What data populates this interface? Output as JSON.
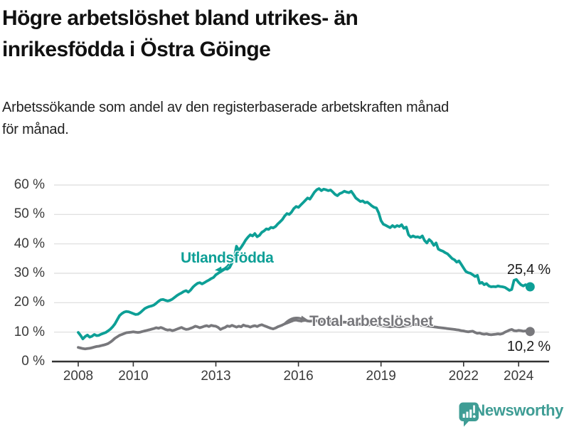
{
  "header": {
    "title_lines": [
      "Högre arbetslöshet bland utrikes- än",
      "inrikesfödda i Östra Göinge"
    ],
    "subtitle_lines": [
      "Arbetssökande som andel av den registerbaserade arbetskraften månad",
      "för månad."
    ]
  },
  "chart_data": {
    "type": "line",
    "title": "Högre arbetslöshet bland utrikes- än inrikesfödda i Östra Göinge",
    "subtitle": "Arbetssökande som andel av den registerbaserade arbetskraften månad för månad.",
    "xlabel": "",
    "ylabel": "",
    "grid": "horizontal",
    "x_axis": {
      "ticks": [
        2008,
        2010,
        2013,
        2016,
        2019,
        2022,
        2024
      ]
    },
    "y_axis": {
      "ticks": [
        0,
        10,
        20,
        30,
        40,
        50,
        60
      ],
      "tick_suffix": " %",
      "ylim": [
        0,
        62
      ]
    },
    "series": [
      {
        "name": "Utlandsfödda",
        "color": "#0d9f96",
        "end_label": "25,4 %",
        "end_value": 25.4,
        "start_year": 2008,
        "interval_months": 1,
        "values": [
          9.9,
          8.9,
          7.7,
          8.5,
          9.0,
          8.3,
          8.6,
          9.2,
          8.8,
          8.9,
          9.3,
          9.6,
          9.9,
          10.4,
          11.0,
          11.8,
          12.8,
          14.2,
          15.6,
          16.3,
          16.8,
          17.0,
          16.9,
          16.6,
          16.3,
          16.0,
          16.1,
          16.6,
          17.3,
          18.0,
          18.4,
          18.7,
          18.9,
          19.2,
          19.8,
          20.5,
          21.0,
          21.1,
          20.8,
          20.6,
          20.8,
          21.2,
          21.8,
          22.4,
          22.9,
          23.3,
          23.8,
          24.1,
          23.6,
          24.3,
          25.3,
          26.0,
          26.6,
          26.8,
          26.4,
          26.8,
          27.3,
          27.7,
          28.2,
          28.6,
          29.5,
          30.0,
          30.5,
          31.0,
          31.5,
          31.4,
          32.0,
          33.5,
          35.2,
          39.2,
          37.8,
          38.8,
          40.0,
          41.3,
          42.3,
          43.1,
          42.7,
          43.5,
          42.4,
          42.9,
          43.9,
          44.4,
          45.1,
          44.9,
          45.6,
          45.4,
          45.9,
          46.8,
          47.5,
          48.3,
          49.5,
          50.3,
          50.0,
          50.8,
          52.0,
          52.7,
          52.4,
          53.2,
          54.0,
          54.8,
          55.6,
          55.2,
          56.4,
          57.6,
          58.4,
          58.8,
          58.1,
          58.6,
          58.4,
          58.1,
          58.3,
          57.6,
          56.8,
          56.4,
          57.1,
          57.4,
          57.9,
          57.6,
          57.4,
          57.9,
          56.8,
          55.6,
          55.0,
          54.4,
          54.6,
          54.0,
          54.2,
          53.6,
          52.9,
          52.4,
          52.2,
          50.5,
          47.9,
          46.7,
          46.3,
          45.9,
          45.5,
          46.2,
          45.7,
          46.2,
          45.9,
          46.5,
          45.3,
          45.7,
          43.1,
          42.3,
          42.7,
          42.3,
          42.4,
          42.1,
          42.7,
          41.1,
          40.3,
          41.5,
          40.8,
          39.5,
          40.3,
          38.2,
          37.8,
          37.5,
          37.0,
          36.6,
          35.8,
          35.0,
          34.6,
          33.8,
          34.2,
          33.0,
          31.8,
          30.6,
          30.2,
          30.0,
          29.5,
          28.9,
          29.3,
          26.6,
          26.9,
          26.1,
          26.5,
          25.7,
          25.4,
          25.5,
          25.4,
          25.7,
          25.5,
          25.4,
          25.2,
          24.7,
          24.2,
          24.5,
          27.6,
          27.9,
          26.9,
          26.1,
          25.7,
          26.1,
          25.7,
          25.4
        ]
      },
      {
        "name": "Total arbetslöshet",
        "color": "#78787c",
        "end_label": "10,2 %",
        "end_value": 10.2,
        "start_year": 2008,
        "interval_months": 1,
        "values": [
          4.8,
          4.6,
          4.4,
          4.3,
          4.4,
          4.5,
          4.7,
          4.9,
          5.1,
          5.2,
          5.4,
          5.6,
          5.8,
          6.1,
          6.6,
          7.2,
          7.9,
          8.4,
          8.9,
          9.2,
          9.5,
          9.8,
          9.9,
          10.0,
          10.1,
          10.0,
          9.9,
          10.0,
          10.2,
          10.4,
          10.6,
          10.8,
          11.0,
          11.2,
          11.5,
          11.3,
          11.6,
          11.3,
          10.9,
          10.7,
          10.8,
          10.5,
          10.7,
          11.0,
          11.3,
          11.6,
          11.2,
          10.9,
          11.0,
          11.3,
          11.6,
          12.0,
          11.8,
          11.5,
          11.7,
          12.0,
          12.2,
          11.9,
          12.3,
          12.1,
          12.0,
          11.6,
          10.9,
          11.3,
          11.6,
          12.1,
          11.9,
          12.3,
          12.0,
          11.7,
          12.0,
          11.8,
          12.4,
          12.1,
          12.0,
          11.7,
          12.0,
          12.2,
          11.9,
          12.3,
          12.5,
          12.2,
          11.9,
          11.6,
          11.3,
          11.1,
          11.4,
          11.8,
          12.1,
          12.4,
          12.8,
          13.1,
          13.4,
          13.7,
          14.0,
          14.1,
          13.9,
          13.8,
          13.9,
          14.0,
          13.8,
          13.7,
          13.8,
          13.9,
          13.8,
          13.7,
          13.6,
          13.7,
          13.8,
          13.7,
          13.6,
          13.5,
          13.4,
          13.3,
          13.2,
          13.3,
          13.4,
          13.3,
          13.2,
          13.1,
          13.0,
          12.9,
          12.8,
          12.7,
          12.6,
          12.5,
          12.4,
          12.5,
          12.6,
          12.5,
          12.4,
          12.3,
          12.2,
          12.1,
          12.0,
          11.9,
          11.8,
          11.9,
          12.0,
          11.9,
          11.8,
          11.9,
          12.0,
          12.1,
          12.2,
          12.3,
          12.5,
          12.6,
          12.5,
          12.4,
          12.3,
          12.2,
          12.1,
          12.0,
          11.9,
          11.8,
          11.7,
          11.6,
          11.5,
          11.4,
          11.3,
          11.2,
          11.1,
          11.0,
          10.9,
          10.8,
          10.7,
          10.5,
          10.4,
          10.2,
          10.1,
          10.2,
          10.3,
          9.9,
          9.6,
          9.7,
          9.4,
          9.3,
          9.4,
          9.2,
          9.1,
          9.2,
          9.3,
          9.4,
          9.3,
          9.5,
          10.0,
          10.3,
          10.7,
          10.9,
          10.5,
          10.4,
          10.6,
          10.5,
          10.3,
          10.4,
          10.2,
          10.2
        ]
      }
    ]
  },
  "footer": {
    "brand": "Newsworthy"
  },
  "colors": {
    "teal": "#0d9f96",
    "gray": "#78787c",
    "gridline": "#dcdcdc",
    "axis": "#333333",
    "text": "#1a1a1a",
    "brand_teal": "#3f9d95"
  }
}
